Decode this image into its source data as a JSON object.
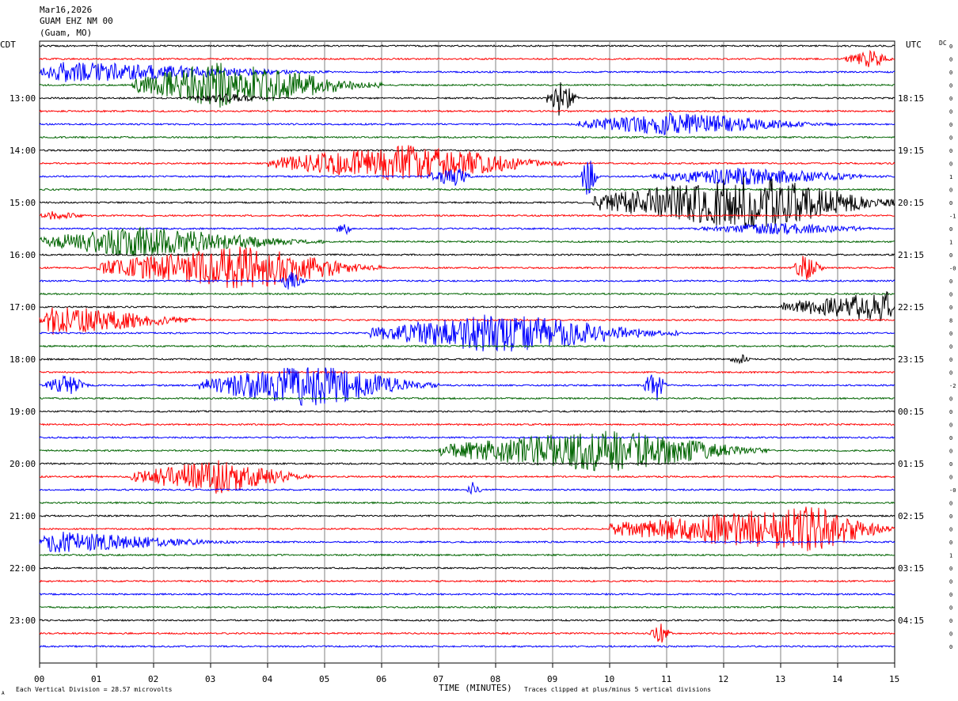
{
  "header": {
    "date": "Mar16,2026",
    "station": "GUAM EHZ NM 00",
    "location": "(Guam, MO)"
  },
  "left_label": "CDT",
  "right_label": "UTC",
  "dc_label": "DC",
  "footer": {
    "scale": "Each Vertical Division =   28.57 microvolts",
    "xlabel": "TIME (MINUTES)",
    "clip_note": "Traces clipped at plus/minus 5 vertical divisions",
    "corner_mark": "A"
  },
  "chart_data": {
    "type": "line",
    "title": "",
    "xlabel": "TIME (MINUTES)",
    "xlim": [
      0,
      15
    ],
    "x_ticks": [
      "00",
      "01",
      "02",
      "03",
      "04",
      "05",
      "06",
      "07",
      "08",
      "09",
      "10",
      "11",
      "12",
      "13",
      "14",
      "15"
    ],
    "trace_count": 47,
    "trace_interval_minutes": 15,
    "trace_colors": [
      "#000000",
      "#ff0000",
      "#0000ff",
      "#006400"
    ],
    "left_time_labels": [
      {
        "trace": 4,
        "label": "13:00"
      },
      {
        "trace": 8,
        "label": "14:00"
      },
      {
        "trace": 12,
        "label": "15:00"
      },
      {
        "trace": 16,
        "label": "16:00"
      },
      {
        "trace": 20,
        "label": "17:00"
      },
      {
        "trace": 24,
        "label": "18:00"
      },
      {
        "trace": 28,
        "label": "19:00"
      },
      {
        "trace": 32,
        "label": "20:00"
      },
      {
        "trace": 36,
        "label": "21:00"
      },
      {
        "trace": 40,
        "label": "22:00"
      },
      {
        "trace": 44,
        "label": "23:00"
      }
    ],
    "right_time_labels": [
      {
        "trace": 4,
        "label": "18:15"
      },
      {
        "trace": 8,
        "label": "19:15"
      },
      {
        "trace": 12,
        "label": "20:15"
      },
      {
        "trace": 16,
        "label": "21:15"
      },
      {
        "trace": 20,
        "label": "22:15"
      },
      {
        "trace": 24,
        "label": "23:15"
      },
      {
        "trace": 28,
        "label": "00:15"
      },
      {
        "trace": 32,
        "label": "01:15"
      },
      {
        "trace": 36,
        "label": "02:15"
      },
      {
        "trace": 40,
        "label": "03:15"
      },
      {
        "trace": 44,
        "label": "04:15"
      }
    ],
    "dc_offsets": [
      "0",
      "0",
      "0",
      "0",
      "0",
      "0",
      "0",
      "0",
      "0",
      "0",
      "1",
      "0",
      "0",
      "-1",
      "0",
      "1",
      "0",
      "-0",
      "0",
      "0",
      "0",
      "8",
      "0",
      "0",
      "0",
      "0",
      "-2",
      "0",
      "0",
      "0",
      "0",
      "0",
      "0",
      "0",
      "-0",
      "0",
      "0",
      "0",
      "0",
      "1",
      "0",
      "0",
      "0",
      "0",
      "0",
      "0",
      "0"
    ],
    "bursts": [
      {
        "trace": 1,
        "start": 14.1,
        "end": 15,
        "amp": 12,
        "peak": 14.6
      },
      {
        "trace": 2,
        "start": 0,
        "end": 5.2,
        "amp": 14,
        "peak": 0.3
      },
      {
        "trace": 3,
        "start": 1.6,
        "end": 6.0,
        "amp": 30,
        "peak": 3.2
      },
      {
        "trace": 4,
        "start": 2.5,
        "end": 4.2,
        "amp": 6,
        "peak": 3.3
      },
      {
        "trace": 4,
        "start": 8.9,
        "end": 9.5,
        "amp": 24,
        "peak": 9.1
      },
      {
        "trace": 6,
        "start": 9.4,
        "end": 14.0,
        "amp": 15,
        "peak": 11.1
      },
      {
        "trace": 9,
        "start": 4.0,
        "end": 9.2,
        "amp": 24,
        "peak": 6.5
      },
      {
        "trace": 10,
        "start": 6.8,
        "end": 7.6,
        "amp": 14,
        "peak": 7.3
      },
      {
        "trace": 10,
        "start": 9.5,
        "end": 9.8,
        "amp": 32,
        "peak": 9.6
      },
      {
        "trace": 10,
        "start": 10.7,
        "end": 15,
        "amp": 12,
        "peak": 12.2
      },
      {
        "trace": 12,
        "start": 9.7,
        "end": 15,
        "amp": 36,
        "peak": 12.5
      },
      {
        "trace": 13,
        "start": 0,
        "end": 1.0,
        "amp": 6,
        "peak": 0.2
      },
      {
        "trace": 14,
        "start": 5.2,
        "end": 5.5,
        "amp": 10,
        "peak": 5.4
      },
      {
        "trace": 14,
        "start": 11.5,
        "end": 15,
        "amp": 8,
        "peak": 13.0
      },
      {
        "trace": 15,
        "start": 0,
        "end": 5.0,
        "amp": 20,
        "peak": 1.6
      },
      {
        "trace": 17,
        "start": 1.0,
        "end": 6.0,
        "amp": 28,
        "peak": 3.6
      },
      {
        "trace": 17,
        "start": 13.2,
        "end": 13.8,
        "amp": 18,
        "peak": 13.4
      },
      {
        "trace": 18,
        "start": 4.2,
        "end": 4.7,
        "amp": 14,
        "peak": 4.4
      },
      {
        "trace": 20,
        "start": 13.0,
        "end": 15,
        "amp": 20,
        "peak": 14.9
      },
      {
        "trace": 21,
        "start": 0,
        "end": 3.0,
        "amp": 20,
        "peak": 0.2
      },
      {
        "trace": 22,
        "start": 5.8,
        "end": 11.2,
        "amp": 26,
        "peak": 8.1
      },
      {
        "trace": 24,
        "start": 12.1,
        "end": 12.5,
        "amp": 7,
        "peak": 12.3
      },
      {
        "trace": 26,
        "start": 0.1,
        "end": 0.9,
        "amp": 14,
        "peak": 0.5
      },
      {
        "trace": 26,
        "start": 2.8,
        "end": 7.0,
        "amp": 28,
        "peak": 4.8
      },
      {
        "trace": 26,
        "start": 10.6,
        "end": 11.0,
        "amp": 24,
        "peak": 10.8
      },
      {
        "trace": 31,
        "start": 7.0,
        "end": 12.8,
        "amp": 28,
        "peak": 10.0
      },
      {
        "trace": 33,
        "start": 1.6,
        "end": 4.8,
        "amp": 22,
        "peak": 3.1
      },
      {
        "trace": 34,
        "start": 7.5,
        "end": 7.8,
        "amp": 10,
        "peak": 7.6
      },
      {
        "trace": 37,
        "start": 10.0,
        "end": 15,
        "amp": 30,
        "peak": 13.6
      },
      {
        "trace": 38,
        "start": 0,
        "end": 3.5,
        "amp": 14,
        "peak": 0.2
      },
      {
        "trace": 45,
        "start": 10.7,
        "end": 11.1,
        "amp": 14,
        "peak": 10.9
      }
    ]
  }
}
